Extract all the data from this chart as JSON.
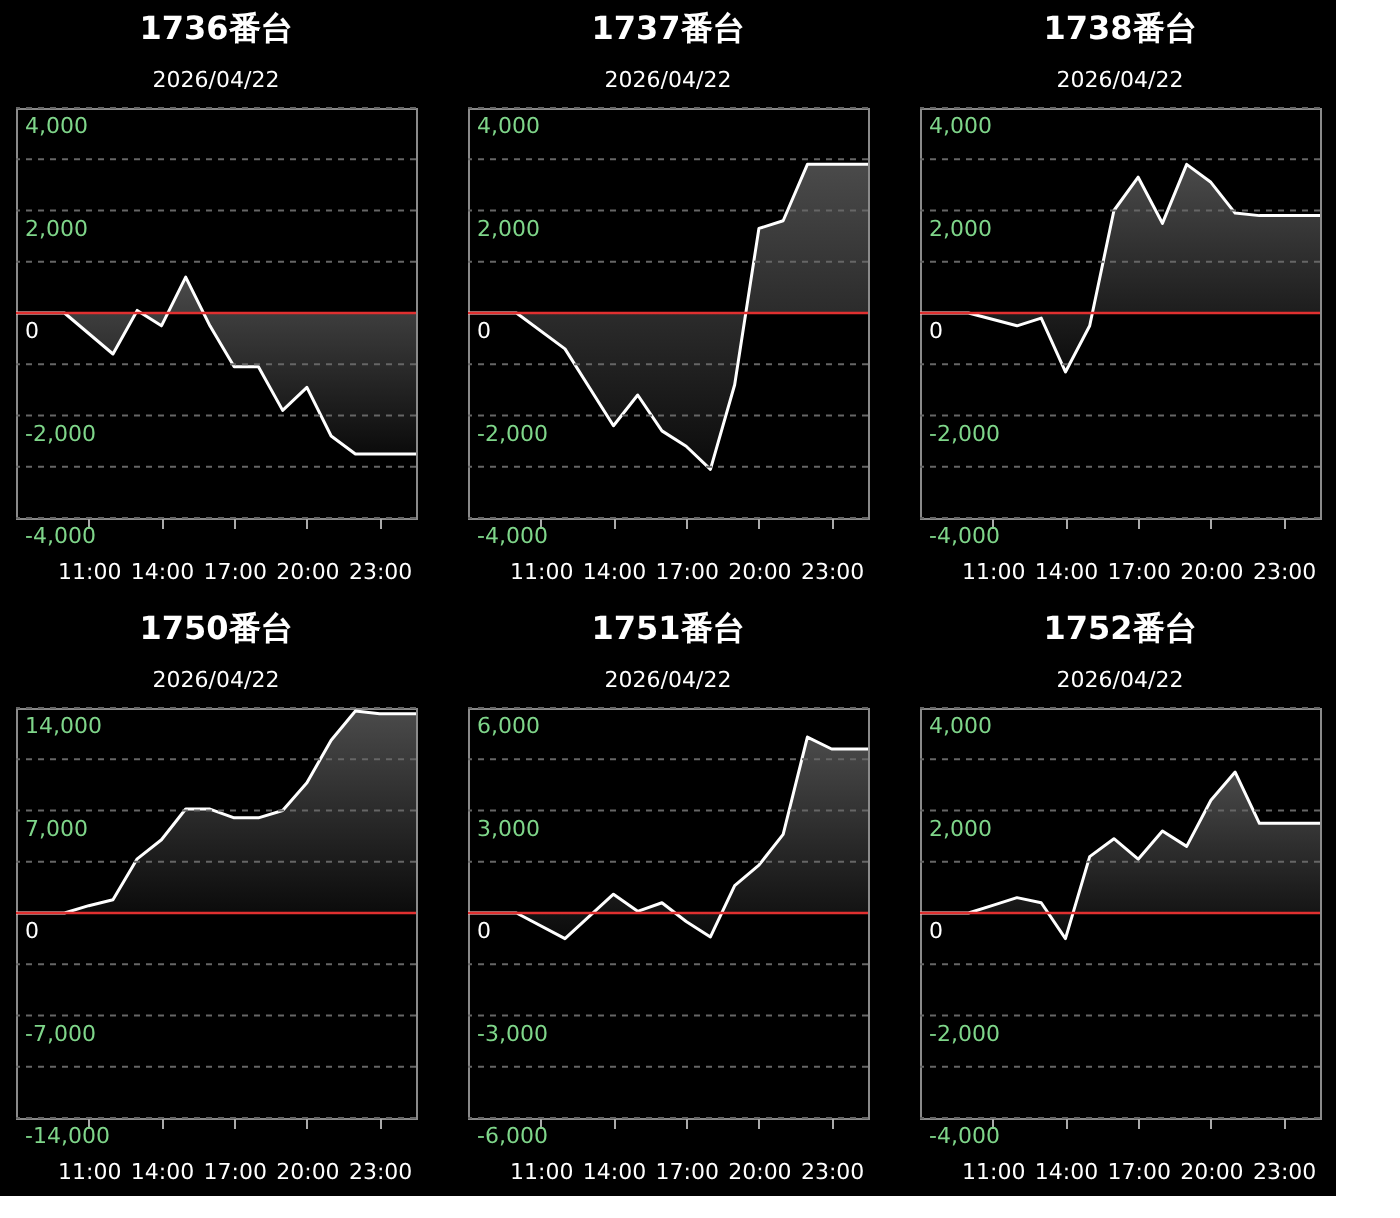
{
  "chart_data": [
    {
      "type": "area",
      "title": "1736番台",
      "subtitle": "2026/04/22",
      "x": [
        8,
        10,
        12,
        13,
        14,
        15,
        16,
        17,
        18,
        19,
        20,
        21,
        22,
        24.5
      ],
      "series": [
        {
          "color": "#ffffff",
          "values": [
            0,
            0,
            -800,
            50,
            -250,
            700,
            -250,
            -1050,
            -1050,
            -1900,
            -1450,
            -2400,
            -2750,
            -2750
          ]
        }
      ],
      "xlim": [
        8,
        24.5
      ],
      "xticks": [
        {
          "value": 11,
          "label": "11:00"
        },
        {
          "value": 14,
          "label": "14:00"
        },
        {
          "value": 17,
          "label": "17:00"
        },
        {
          "value": 20,
          "label": "20:00"
        },
        {
          "value": 23,
          "label": "23:00"
        }
      ],
      "ylim": [
        -4000,
        4000
      ],
      "yticks": [
        {
          "value": -4000,
          "label": "-4,000"
        },
        {
          "value": -3000,
          "label": null
        },
        {
          "value": -2000,
          "label": "-2,000"
        },
        {
          "value": -1000,
          "label": null
        },
        0,
        {
          "value": 1000,
          "label": null
        },
        {
          "value": 2000,
          "label": "2,000"
        },
        {
          "value": 3000,
          "label": null
        },
        {
          "value": 4000,
          "label": "4,000"
        }
      ],
      "ref_lines": [
        {
          "axis": "y",
          "value": 0,
          "color": "#e03030"
        }
      ],
      "grid": "y"
    },
    {
      "type": "area",
      "title": "1737番台",
      "subtitle": "2026/04/22",
      "x": [
        8,
        10,
        12,
        14,
        15,
        16,
        17,
        18,
        19,
        20,
        21,
        22,
        24.5
      ],
      "series": [
        {
          "color": "#ffffff",
          "values": [
            0,
            0,
            -700,
            -2200,
            -1600,
            -2300,
            -2600,
            -3050,
            -1400,
            1650,
            1800,
            2900,
            2900
          ]
        }
      ],
      "xlim": [
        8,
        24.5
      ],
      "xticks": [
        {
          "value": 11,
          "label": "11:00"
        },
        {
          "value": 14,
          "label": "14:00"
        },
        {
          "value": 17,
          "label": "17:00"
        },
        {
          "value": 20,
          "label": "20:00"
        },
        {
          "value": 23,
          "label": "23:00"
        }
      ],
      "ylim": [
        -4000,
        4000
      ],
      "yticks": [
        {
          "value": -4000,
          "label": "-4,000"
        },
        {
          "value": -3000,
          "label": null
        },
        {
          "value": -2000,
          "label": "-2,000"
        },
        {
          "value": -1000,
          "label": null
        },
        0,
        {
          "value": 1000,
          "label": null
        },
        {
          "value": 2000,
          "label": "2,000"
        },
        {
          "value": 3000,
          "label": null
        },
        {
          "value": 4000,
          "label": "4,000"
        }
      ],
      "ref_lines": [
        {
          "axis": "y",
          "value": 0,
          "color": "#e03030"
        }
      ],
      "grid": "y"
    },
    {
      "type": "area",
      "title": "1738番台",
      "subtitle": "2026/04/22",
      "x": [
        8,
        10,
        12,
        13,
        14,
        15,
        16,
        17,
        18,
        19,
        20,
        21,
        22,
        24.5
      ],
      "series": [
        {
          "color": "#ffffff",
          "values": [
            0,
            0,
            -250,
            -100,
            -1150,
            -250,
            2000,
            2650,
            1750,
            2900,
            2550,
            1950,
            1900,
            1900
          ]
        }
      ],
      "xlim": [
        8,
        24.5
      ],
      "xticks": [
        {
          "value": 11,
          "label": "11:00"
        },
        {
          "value": 14,
          "label": "14:00"
        },
        {
          "value": 17,
          "label": "17:00"
        },
        {
          "value": 20,
          "label": "20:00"
        },
        {
          "value": 23,
          "label": "23:00"
        }
      ],
      "ylim": [
        -4000,
        4000
      ],
      "yticks": [
        {
          "value": -4000,
          "label": "-4,000"
        },
        {
          "value": -3000,
          "label": null
        },
        {
          "value": -2000,
          "label": "-2,000"
        },
        {
          "value": -1000,
          "label": null
        },
        0,
        {
          "value": 1000,
          "label": null
        },
        {
          "value": 2000,
          "label": "2,000"
        },
        {
          "value": 3000,
          "label": null
        },
        {
          "value": 4000,
          "label": "4,000"
        }
      ],
      "ref_lines": [
        {
          "axis": "y",
          "value": 0,
          "color": "#e03030"
        }
      ],
      "grid": "y"
    },
    {
      "type": "area",
      "title": "1750番台",
      "subtitle": "2026/04/22",
      "x": [
        8,
        10,
        11,
        12,
        13,
        14,
        15,
        16,
        17,
        18,
        19,
        20,
        21,
        22,
        23,
        24.5
      ],
      "series": [
        {
          "color": "#ffffff",
          "values": [
            0,
            0,
            500,
            900,
            3700,
            5000,
            7100,
            7100,
            6500,
            6500,
            7000,
            8900,
            11800,
            13800,
            13600,
            13600
          ]
        }
      ],
      "xlim": [
        8,
        24.5
      ],
      "xticks": [
        {
          "value": 11,
          "label": "11:00"
        },
        {
          "value": 14,
          "label": "14:00"
        },
        {
          "value": 17,
          "label": "17:00"
        },
        {
          "value": 20,
          "label": "20:00"
        },
        {
          "value": 23,
          "label": "23:00"
        }
      ],
      "ylim": [
        -14000,
        14000
      ],
      "yticks": [
        {
          "value": -14000,
          "label": "-14,000"
        },
        {
          "value": -10500,
          "label": null
        },
        {
          "value": -7000,
          "label": "-7,000"
        },
        {
          "value": -3500,
          "label": null
        },
        0,
        {
          "value": 3500,
          "label": null
        },
        {
          "value": 7000,
          "label": "7,000"
        },
        {
          "value": 10500,
          "label": null
        },
        {
          "value": 14000,
          "label": "14,000"
        }
      ],
      "ref_lines": [
        {
          "axis": "y",
          "value": 0,
          "color": "#e03030"
        }
      ],
      "grid": "y"
    },
    {
      "type": "area",
      "title": "1751番台",
      "subtitle": "2026/04/22",
      "x": [
        8,
        10,
        12,
        14,
        15,
        16,
        17,
        18,
        19,
        20,
        21,
        22,
        23,
        24.5
      ],
      "series": [
        {
          "color": "#ffffff",
          "values": [
            0,
            0,
            -750,
            550,
            50,
            300,
            -250,
            -700,
            800,
            1400,
            2300,
            5150,
            4800,
            4800
          ]
        }
      ],
      "xlim": [
        8,
        24.5
      ],
      "xticks": [
        {
          "value": 11,
          "label": "11:00"
        },
        {
          "value": 14,
          "label": "14:00"
        },
        {
          "value": 17,
          "label": "17:00"
        },
        {
          "value": 20,
          "label": "20:00"
        },
        {
          "value": 23,
          "label": "23:00"
        }
      ],
      "ylim": [
        -6000,
        6000
      ],
      "yticks": [
        {
          "value": -6000,
          "label": "-6,000"
        },
        {
          "value": -4500,
          "label": null
        },
        {
          "value": -3000,
          "label": "-3,000"
        },
        {
          "value": -1500,
          "label": null
        },
        0,
        {
          "value": 1500,
          "label": null
        },
        {
          "value": 3000,
          "label": "3,000"
        },
        {
          "value": 4500,
          "label": null
        },
        {
          "value": 6000,
          "label": "6,000"
        }
      ],
      "ref_lines": [
        {
          "axis": "y",
          "value": 0,
          "color": "#e03030"
        }
      ],
      "grid": "y"
    },
    {
      "type": "area",
      "title": "1752番台",
      "subtitle": "2026/04/22",
      "x": [
        8,
        10,
        11,
        12,
        13,
        14,
        15,
        16,
        17,
        18,
        19,
        20,
        21,
        22,
        23,
        24.5
      ],
      "series": [
        {
          "color": "#ffffff",
          "values": [
            0,
            0,
            150,
            300,
            200,
            -500,
            1100,
            1450,
            1050,
            1600,
            1300,
            2200,
            2750,
            1750,
            1750,
            1750
          ]
        }
      ],
      "xlim": [
        8,
        24.5
      ],
      "xticks": [
        {
          "value": 11,
          "label": "11:00"
        },
        {
          "value": 14,
          "label": "14:00"
        },
        {
          "value": 17,
          "label": "17:00"
        },
        {
          "value": 20,
          "label": "20:00"
        },
        {
          "value": 23,
          "label": "23:00"
        }
      ],
      "ylim": [
        -4000,
        4000
      ],
      "yticks": [
        {
          "value": -4000,
          "label": "-4,000"
        },
        {
          "value": -3000,
          "label": null
        },
        {
          "value": -2000,
          "label": "-2,000"
        },
        {
          "value": -1000,
          "label": null
        },
        0,
        {
          "value": 1000,
          "label": null
        },
        {
          "value": 2000,
          "label": "2,000"
        },
        {
          "value": 3000,
          "label": null
        },
        {
          "value": 4000,
          "label": "4,000"
        }
      ],
      "ref_lines": [
        {
          "axis": "y",
          "value": 0,
          "color": "#e03030"
        }
      ],
      "grid": "y"
    }
  ]
}
